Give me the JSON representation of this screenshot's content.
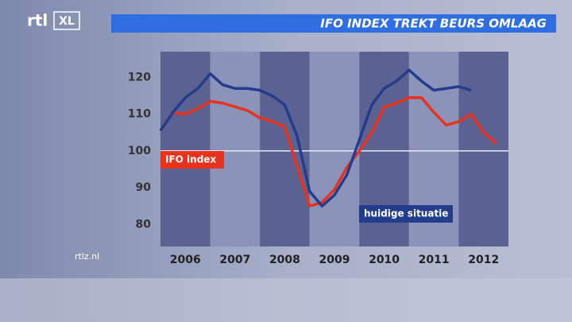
{
  "channel": {
    "logo": "rtl",
    "logo_suffix": "XL",
    "website": "rtlz.nl"
  },
  "chart_data": {
    "type": "line",
    "title": "IFO INDEX TREKT BEURS OMLAAG",
    "x": [
      2006,
      2006.25,
      2006.5,
      2006.75,
      2007,
      2007.25,
      2007.5,
      2007.75,
      2008,
      2008.25,
      2008.5,
      2008.75,
      2009,
      2009.25,
      2009.5,
      2009.75,
      2010,
      2010.25,
      2010.5,
      2010.75,
      2011,
      2011.25,
      2011.5,
      2011.75,
      2012,
      2012.25,
      2012.5,
      2012.75
    ],
    "series": [
      {
        "name": "IFO index",
        "color": "#e8321e",
        "values": [
          105.5,
          110.5,
          110,
          111.5,
          113.5,
          113,
          112,
          111,
          109,
          108,
          106.5,
          95.5,
          85,
          86,
          89.5,
          95.5,
          100,
          105,
          112,
          113,
          114.5,
          114.5,
          110.5,
          107,
          108,
          110,
          105,
          102
        ]
      },
      {
        "name": "huidige situatie",
        "color": "#233c8c",
        "values": [
          105.5,
          110.5,
          114.5,
          117,
          121,
          118,
          117,
          117,
          116.5,
          115,
          112.5,
          104,
          89,
          85,
          88,
          93.5,
          103,
          112.5,
          117,
          119,
          122,
          119,
          116.5,
          117,
          117.5,
          116.5,
          null,
          null
        ]
      }
    ],
    "xlim": [
      2006,
      2013
    ],
    "xticks": [
      {
        "value": 2006.5,
        "label": "2006"
      },
      {
        "value": 2007.5,
        "label": "2007"
      },
      {
        "value": 2008.5,
        "label": "2008"
      },
      {
        "value": 2009.5,
        "label": "2009"
      },
      {
        "value": 2010.5,
        "label": "2010"
      },
      {
        "value": 2011.5,
        "label": "2011"
      },
      {
        "value": 2012.5,
        "label": "2012"
      }
    ],
    "ylim": [
      74,
      127
    ],
    "yticks": [
      80,
      90,
      100,
      110,
      120
    ],
    "reference_line": 100
  }
}
